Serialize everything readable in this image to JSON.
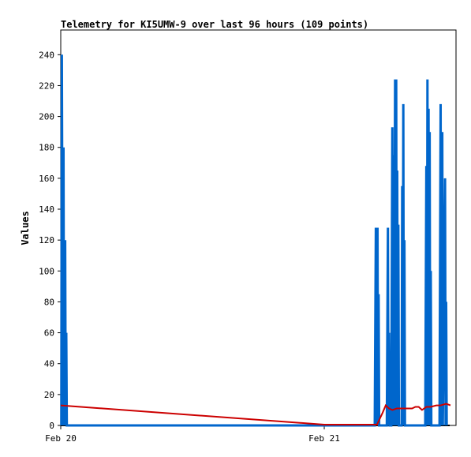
{
  "chart_data": {
    "type": "line",
    "title": "Telemetry for KI5UMW-9 over last 96 hours (109 points)",
    "xlabel": "",
    "ylabel": "Values",
    "x_tick_labels": [
      "Feb 20",
      "Feb 21"
    ],
    "x_ticks_hours": [
      0,
      24
    ],
    "xlim_hours": [
      0,
      36
    ],
    "ylim": [
      0,
      256
    ],
    "y_ticks": [
      0,
      20,
      40,
      60,
      80,
      100,
      120,
      140,
      160,
      180,
      200,
      220,
      240
    ],
    "grid": false,
    "legend": "none",
    "series": [
      {
        "color": "#0066cc",
        "style": "spikes",
        "points": [
          [
            0.05,
            0
          ],
          [
            0.1,
            240
          ],
          [
            0.2,
            0
          ],
          [
            0.25,
            180
          ],
          [
            0.3,
            0
          ],
          [
            0.4,
            120
          ],
          [
            0.45,
            0
          ],
          [
            0.5,
            60
          ],
          [
            0.55,
            0
          ],
          [
            28.6,
            0
          ],
          [
            28.7,
            128
          ],
          [
            28.8,
            0
          ],
          [
            28.85,
            128
          ],
          [
            28.9,
            0
          ],
          [
            28.95,
            85
          ],
          [
            29.0,
            0
          ],
          [
            29.7,
            0
          ],
          [
            29.8,
            128
          ],
          [
            29.85,
            0
          ],
          [
            29.9,
            60
          ],
          [
            29.95,
            0
          ],
          [
            30.1,
            0
          ],
          [
            30.2,
            193
          ],
          [
            30.25,
            0
          ],
          [
            30.3,
            175
          ],
          [
            30.35,
            0
          ],
          [
            30.45,
            224
          ],
          [
            30.5,
            0
          ],
          [
            30.55,
            224
          ],
          [
            30.6,
            0
          ],
          [
            30.65,
            165
          ],
          [
            30.7,
            0
          ],
          [
            30.75,
            130
          ],
          [
            30.8,
            0
          ],
          [
            31.05,
            0
          ],
          [
            31.1,
            155
          ],
          [
            31.15,
            0
          ],
          [
            31.2,
            208
          ],
          [
            31.25,
            0
          ],
          [
            31.3,
            120
          ],
          [
            31.35,
            0
          ],
          [
            33.2,
            0
          ],
          [
            33.3,
            168
          ],
          [
            33.35,
            0
          ],
          [
            33.4,
            224
          ],
          [
            33.45,
            0
          ],
          [
            33.5,
            205
          ],
          [
            33.55,
            0
          ],
          [
            33.6,
            190
          ],
          [
            33.65,
            0
          ],
          [
            33.7,
            100
          ],
          [
            33.75,
            0
          ],
          [
            34.5,
            0
          ],
          [
            34.6,
            208
          ],
          [
            34.65,
            0
          ],
          [
            34.75,
            190
          ],
          [
            34.8,
            0
          ],
          [
            35.0,
            160
          ],
          [
            35.05,
            0
          ],
          [
            35.1,
            80
          ],
          [
            35.15,
            0
          ]
        ]
      },
      {
        "color": "#cc0000",
        "style": "line",
        "points": [
          [
            0.0,
            13
          ],
          [
            24.0,
            0.5
          ],
          [
            28.8,
            0.5
          ],
          [
            29.3,
            8
          ],
          [
            29.6,
            13
          ],
          [
            29.9,
            11
          ],
          [
            30.2,
            10
          ],
          [
            30.6,
            11
          ],
          [
            31.5,
            11
          ],
          [
            32.0,
            11
          ],
          [
            32.3,
            12
          ],
          [
            32.6,
            12
          ],
          [
            32.9,
            10
          ],
          [
            33.3,
            12
          ],
          [
            33.7,
            12
          ],
          [
            34.2,
            13
          ],
          [
            34.6,
            13
          ],
          [
            35.1,
            14
          ],
          [
            35.5,
            13
          ]
        ]
      }
    ]
  }
}
